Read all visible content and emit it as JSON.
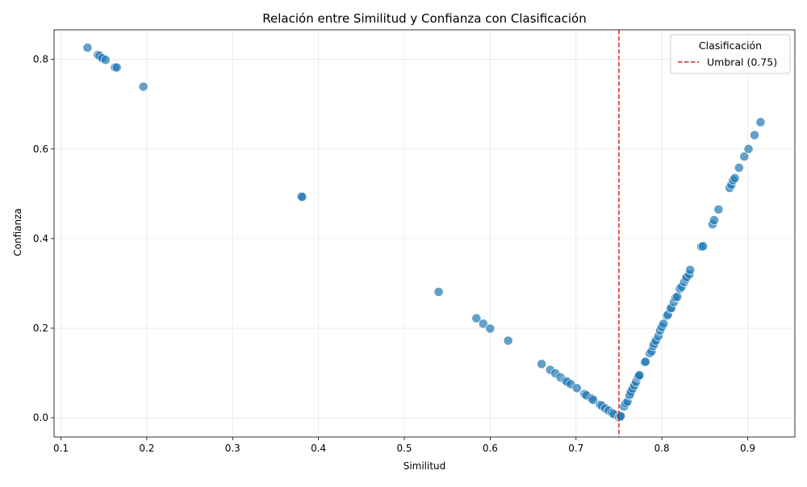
{
  "chart_data": {
    "type": "scatter",
    "title": "Relación entre Similitud y Confianza con Clasificación",
    "xlabel": "Similitud",
    "ylabel": "Confianza",
    "xlim": [
      0.092,
      0.955
    ],
    "ylim": [
      -0.043,
      0.866
    ],
    "x_ticks": [
      0.1,
      0.2,
      0.3,
      0.4,
      0.5,
      0.6,
      0.7,
      0.8,
      0.9
    ],
    "x_tick_labels": [
      "0.1",
      "0.2",
      "0.3",
      "0.4",
      "0.5",
      "0.6",
      "0.7",
      "0.8",
      "0.9"
    ],
    "y_ticks": [
      0.0,
      0.2,
      0.4,
      0.6,
      0.8
    ],
    "y_tick_labels": [
      "0.0",
      "0.2",
      "0.4",
      "0.6",
      "0.8"
    ],
    "grid": true,
    "point_color": "#1f77b4",
    "threshold": {
      "value": 0.75,
      "color": "#d62728",
      "label": "Umbral (0.75)"
    },
    "legend": {
      "title": "Clasificación",
      "placement": "top-right",
      "entries": [
        "Umbral (0.75)"
      ]
    },
    "points": [
      [
        0.131,
        0.826
      ],
      [
        0.143,
        0.81
      ],
      [
        0.145,
        0.808
      ],
      [
        0.148,
        0.803
      ],
      [
        0.152,
        0.799
      ],
      [
        0.163,
        0.782
      ],
      [
        0.165,
        0.782
      ],
      [
        0.196,
        0.739
      ],
      [
        0.38,
        0.494
      ],
      [
        0.381,
        0.493
      ],
      [
        0.54,
        0.281
      ],
      [
        0.584,
        0.222
      ],
      [
        0.592,
        0.21
      ],
      [
        0.6,
        0.199
      ],
      [
        0.621,
        0.172
      ],
      [
        0.66,
        0.12
      ],
      [
        0.67,
        0.107
      ],
      [
        0.676,
        0.099
      ],
      [
        0.682,
        0.09
      ],
      [
        0.688,
        0.082
      ],
      [
        0.69,
        0.08
      ],
      [
        0.694,
        0.075
      ],
      [
        0.701,
        0.066
      ],
      [
        0.71,
        0.053
      ],
      [
        0.712,
        0.05
      ],
      [
        0.718,
        0.043
      ],
      [
        0.72,
        0.04
      ],
      [
        0.728,
        0.029
      ],
      [
        0.73,
        0.027
      ],
      [
        0.734,
        0.021
      ],
      [
        0.738,
        0.016
      ],
      [
        0.742,
        0.011
      ],
      [
        0.744,
        0.008
      ],
      [
        0.75,
        0.001
      ],
      [
        0.752,
        0.002
      ],
      [
        0.752,
        0.004
      ],
      [
        0.756,
        0.025
      ],
      [
        0.758,
        0.032
      ],
      [
        0.76,
        0.036
      ],
      [
        0.762,
        0.05
      ],
      [
        0.763,
        0.052
      ],
      [
        0.764,
        0.058
      ],
      [
        0.766,
        0.065
      ],
      [
        0.768,
        0.072
      ],
      [
        0.77,
        0.08
      ],
      [
        0.772,
        0.09
      ],
      [
        0.773,
        0.093
      ],
      [
        0.774,
        0.095
      ],
      [
        0.78,
        0.124
      ],
      [
        0.781,
        0.125
      ],
      [
        0.786,
        0.144
      ],
      [
        0.788,
        0.148
      ],
      [
        0.79,
        0.16
      ],
      [
        0.791,
        0.165
      ],
      [
        0.793,
        0.172
      ],
      [
        0.796,
        0.182
      ],
      [
        0.798,
        0.195
      ],
      [
        0.8,
        0.203
      ],
      [
        0.802,
        0.21
      ],
      [
        0.806,
        0.228
      ],
      [
        0.807,
        0.23
      ],
      [
        0.81,
        0.243
      ],
      [
        0.811,
        0.245
      ],
      [
        0.814,
        0.258
      ],
      [
        0.816,
        0.268
      ],
      [
        0.818,
        0.27
      ],
      [
        0.821,
        0.288
      ],
      [
        0.823,
        0.292
      ],
      [
        0.826,
        0.303
      ],
      [
        0.828,
        0.31
      ],
      [
        0.829,
        0.314
      ],
      [
        0.832,
        0.32
      ],
      [
        0.833,
        0.33
      ],
      [
        0.846,
        0.382
      ],
      [
        0.848,
        0.383
      ],
      [
        0.859,
        0.432
      ],
      [
        0.861,
        0.441
      ],
      [
        0.866,
        0.465
      ],
      [
        0.879,
        0.513
      ],
      [
        0.881,
        0.52
      ],
      [
        0.883,
        0.53
      ],
      [
        0.885,
        0.535
      ],
      [
        0.89,
        0.558
      ],
      [
        0.896,
        0.583
      ],
      [
        0.901,
        0.6
      ],
      [
        0.908,
        0.631
      ],
      [
        0.915,
        0.66
      ]
    ]
  }
}
